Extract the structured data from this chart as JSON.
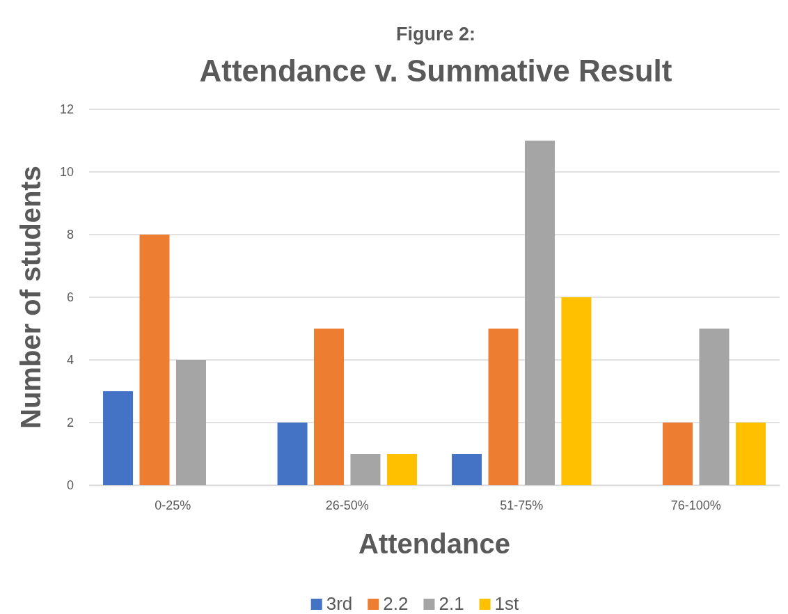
{
  "chart_data": {
    "type": "bar",
    "title": "Figure 2:",
    "subtitle": "Attendance v. Summative Result",
    "xlabel": "Attendance",
    "ylabel": "Number of students",
    "categories": [
      "0-25%",
      "26-50%",
      "51-75%",
      "76-100%"
    ],
    "series": [
      {
        "name": "3rd",
        "color": "#4472c4",
        "values": [
          3,
          2,
          1,
          0
        ]
      },
      {
        "name": "2.2",
        "color": "#ed7d31",
        "values": [
          8,
          5,
          5,
          2
        ]
      },
      {
        "name": "2.1",
        "color": "#a5a5a5",
        "values": [
          4,
          1,
          11,
          5
        ]
      },
      {
        "name": "1st",
        "color": "#ffc000",
        "values": [
          0,
          1,
          6,
          2
        ]
      }
    ],
    "ylim": [
      0,
      12
    ],
    "yticks": [
      0,
      2,
      4,
      6,
      8,
      10,
      12
    ],
    "grid": "y",
    "legend": "bottom"
  }
}
